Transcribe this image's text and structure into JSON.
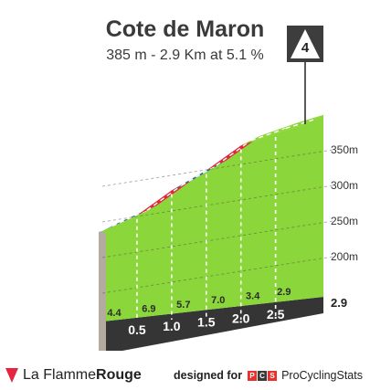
{
  "header": {
    "title": "Cote de Maron",
    "subtitle": "385 m - 2.9 Km at 5.1 %",
    "category_badge": "4"
  },
  "footer": {
    "brand_prefix": "La Flamme",
    "brand_suffix": "Rouge",
    "designed_for": "designed for",
    "pcs_letters": [
      "P",
      "C",
      "S"
    ],
    "pcs_name": "ProCyclingStats"
  },
  "colors": {
    "green": "#8bd63a",
    "red": "#e5243d",
    "blue": "#1f64a8",
    "grey": "#b3aba0",
    "dark": "#353535"
  },
  "chart_data": {
    "type": "area",
    "title": "Cote de Maron",
    "yticks": [
      200,
      250,
      300,
      350
    ],
    "ytick_labels": [
      "200m",
      "250m",
      "300m",
      "350m"
    ],
    "ylim": [
      170,
      360
    ],
    "xlim": [
      0,
      2.9
    ],
    "km_markers": [
      0.5,
      1.0,
      1.5,
      2.0,
      2.5
    ],
    "km_labels": [
      "0.5",
      "1.0",
      "1.5",
      "2.0",
      "2.5"
    ],
    "distance_total_label": "2.9",
    "segments": [
      {
        "start": 0.0,
        "end": 0.5,
        "gradient": 4.4,
        "label": "4.4",
        "color": "blue"
      },
      {
        "start": 0.5,
        "end": 1.0,
        "gradient": 6.9,
        "label": "6.9",
        "color": "red"
      },
      {
        "start": 1.0,
        "end": 1.5,
        "gradient": 5.7,
        "label": "5.7",
        "color": "blue"
      },
      {
        "start": 1.5,
        "end": 2.0,
        "gradient": 7.0,
        "label": "7.0",
        "color": "red"
      },
      {
        "start": 2.0,
        "end": 2.5,
        "gradient": 3.4,
        "label": "3.4",
        "color": "green"
      },
      {
        "start": 2.5,
        "end": 2.9,
        "gradient": 2.9,
        "label": "2.9",
        "color": "green"
      }
    ],
    "profile": {
      "x": [
        0.0,
        0.5,
        1.0,
        1.5,
        2.0,
        2.5,
        2.9
      ],
      "y": [
        236,
        258,
        293,
        321,
        356,
        373,
        385
      ]
    }
  }
}
